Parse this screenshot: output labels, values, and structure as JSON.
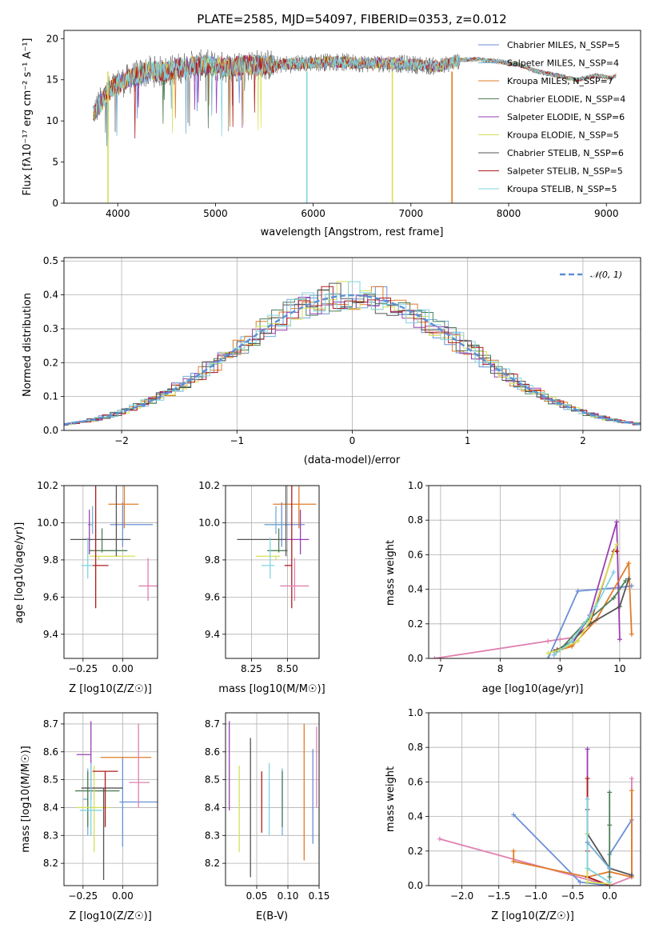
{
  "colors": {
    "c0": "#6a8fd6",
    "c1": "#74afd6",
    "c2": "#e07b28",
    "c3": "#4f7f58",
    "c4": "#9a3fb3",
    "c5": "#d6e05a",
    "c6": "#555555",
    "c7": "#b01c1c",
    "c8": "#7fd4e0",
    "c9": "#e080b0"
  },
  "chart_data": [
    {
      "id": "spectrum",
      "type": "line",
      "title": "PLATE=2585, MJD=54097, FIBERID=0353, z=0.012",
      "xlabel": "wavelength [Angstrom, rest frame]",
      "ylabel": "Flux [fλ10⁻¹⁷ erg cm⁻² s⁻¹ A⁻¹]",
      "xlim": [
        3450,
        9350
      ],
      "ylim": [
        0,
        21
      ],
      "xticks": [
        4000,
        5000,
        6000,
        7000,
        8000,
        9000
      ],
      "yticks": [
        0,
        5,
        10,
        15,
        20
      ],
      "legend_position": "upper right",
      "series": [
        {
          "name": "Chabrier MILES, N_SSP=5",
          "color": "c0"
        },
        {
          "name": "Salpeter MILES, N_SSP=4",
          "color": "c1"
        },
        {
          "name": "Kroupa MILES, N_SSP=7",
          "color": "c2"
        },
        {
          "name": "Chabrier ELODIE, N_SSP=4",
          "color": "c3"
        },
        {
          "name": "Salpeter ELODIE, N_SSP=6",
          "color": "c4"
        },
        {
          "name": "Kroupa ELODIE, N_SSP=5",
          "color": "c5"
        },
        {
          "name": "Chabrier STELIB, N_SSP=6",
          "color": "c6"
        },
        {
          "name": "Salpeter STELIB, N_SSP=5",
          "color": "c7"
        },
        {
          "name": "Kroupa STELIB, N_SSP=5",
          "color": "c8"
        }
      ],
      "continuum": {
        "x": [
          3750,
          3900,
          4000,
          4100,
          4300,
          4500,
          4700,
          4900,
          5100,
          5300,
          5600,
          5900,
          6200,
          6500,
          6800,
          7100,
          7300,
          7500,
          7700,
          7900,
          8100,
          8300,
          8500,
          8700,
          8900,
          9050,
          9100
        ],
        "y": [
          11,
          13.5,
          14.5,
          15,
          16,
          16,
          16.6,
          16.8,
          16.5,
          16.8,
          16.8,
          17,
          17.2,
          17,
          17,
          16.8,
          16.6,
          17.4,
          17.5,
          17.2,
          16.8,
          16,
          15.5,
          15,
          15.5,
          15.2,
          15.5
        ]
      }
    },
    {
      "id": "residuals",
      "type": "line",
      "xlabel": "(data-model)/error",
      "ylabel": "Normed distribution",
      "xlim": [
        -2.5,
        2.5
      ],
      "ylim": [
        0,
        0.51
      ],
      "xticks": [
        -2,
        -1,
        0,
        1,
        2
      ],
      "yticks": [
        0.0,
        0.1,
        0.2,
        0.3,
        0.4,
        0.5
      ],
      "legend_position": "upper right",
      "reference_curve": {
        "name": "𝒩(0, 1)",
        "color": "#5b8fd6"
      }
    },
    {
      "id": "age-vs-Z",
      "type": "scatter",
      "xlabel": "Z [log10(Z/Z☉)]",
      "ylabel": "age  [log10(age/yr)]",
      "xlim": [
        -0.37,
        0.22
      ],
      "ylim": [
        9.27,
        10.2
      ],
      "xticks": [
        -0.25,
        0.0
      ],
      "yticks": [
        9.4,
        9.6,
        9.8,
        10.0,
        10.2
      ],
      "points": [
        {
          "color": "c0",
          "x": 0.0,
          "y": 9.99,
          "xe": [
            0.08,
            0.19
          ],
          "ye": [
            0.12,
            0.12
          ]
        },
        {
          "color": "c1",
          "x": -0.19,
          "y": 9.99,
          "xe": [
            0.03,
            0.0
          ],
          "ye": [
            0.05,
            0.1
          ]
        },
        {
          "color": "c2",
          "x": 0.01,
          "y": 10.1,
          "xe": [
            0.1,
            0.09
          ],
          "ye": [
            0.13,
            0.36
          ]
        },
        {
          "color": "c3",
          "x": -0.13,
          "y": 9.85,
          "xe": [
            0.08,
            0.16
          ],
          "ye": [
            0.01,
            0.12
          ]
        },
        {
          "color": "c4",
          "x": -0.21,
          "y": 9.91,
          "xe": [
            0.04,
            0.0
          ],
          "ye": [
            0.08,
            0.16
          ]
        },
        {
          "color": "c5",
          "x": -0.15,
          "y": 9.82,
          "xe": [
            0.06,
            0.23
          ],
          "ye": [
            0.02,
            0.0
          ]
        },
        {
          "color": "c6",
          "x": -0.04,
          "y": 9.91,
          "xe": [
            0.29,
            0.09
          ],
          "ye": [
            0.09,
            0.6
          ]
        },
        {
          "color": "c7",
          "x": -0.17,
          "y": 9.77,
          "xe": [
            0.02,
            0.08
          ],
          "ye": [
            0.23,
            0.46
          ]
        },
        {
          "color": "c8",
          "x": -0.22,
          "y": 9.77,
          "xe": [
            0.04,
            0.03
          ],
          "ye": [
            0.07,
            0.15
          ]
        },
        {
          "color": "c9",
          "x": 0.16,
          "y": 9.66,
          "xe": [
            0.06,
            0.08
          ],
          "ye": [
            0.08,
            0.15
          ]
        }
      ]
    },
    {
      "id": "age-vs-mass",
      "type": "scatter",
      "xlabel": "mass [log10(M/M☉)]",
      "xlim": [
        8.07,
        8.72
      ],
      "ylim": [
        9.27,
        10.2
      ],
      "xticks": [
        8.25,
        8.5
      ],
      "yticks": [
        9.4,
        9.6,
        9.8,
        10.0,
        10.2
      ],
      "points": [
        {
          "color": "c0",
          "x": 8.46,
          "y": 9.99,
          "xe": [
            0.12,
            0.16
          ],
          "ye": [
            0.12,
            0.12
          ]
        },
        {
          "color": "c1",
          "x": 8.42,
          "y": 9.99,
          "xe": [
            0.08,
            0.05
          ],
          "ye": [
            0.05,
            0.1
          ]
        },
        {
          "color": "c2",
          "x": 8.58,
          "y": 10.1,
          "xe": [
            0.18,
            0.12
          ],
          "ye": [
            0.13,
            0.36
          ]
        },
        {
          "color": "c3",
          "x": 8.44,
          "y": 9.85,
          "xe": [
            0.08,
            0.06
          ],
          "ye": [
            0.01,
            0.12
          ]
        },
        {
          "color": "c4",
          "x": 8.59,
          "y": 9.91,
          "xe": [
            0.12,
            0.06
          ],
          "ye": [
            0.08,
            0.16
          ]
        },
        {
          "color": "c5",
          "x": 8.42,
          "y": 9.82,
          "xe": [
            0.14,
            0.03
          ],
          "ye": [
            0.02,
            0.0
          ]
        },
        {
          "color": "c6",
          "x": 8.49,
          "y": 9.91,
          "xe": [
            0.34,
            0.0
          ],
          "ye": [
            0.09,
            0.6
          ]
        },
        {
          "color": "c7",
          "x": 8.53,
          "y": 9.77,
          "xe": [
            0.05,
            0.0
          ],
          "ye": [
            0.23,
            0.46
          ]
        },
        {
          "color": "c8",
          "x": 8.38,
          "y": 9.77,
          "xe": [
            0.06,
            0.03
          ],
          "ye": [
            0.07,
            0.15
          ]
        },
        {
          "color": "c9",
          "x": 8.55,
          "y": 9.66,
          "xe": [
            0.1,
            0.1
          ],
          "ye": [
            0.08,
            0.15
          ]
        }
      ]
    },
    {
      "id": "weight-vs-age",
      "type": "line",
      "xlabel": "age  [log10(age/yr)]",
      "ylabel": "mass weight",
      "xlim": [
        6.8,
        10.35
      ],
      "ylim": [
        0,
        1
      ],
      "xticks": [
        7,
        8,
        9,
        10
      ],
      "yticks": [
        0.0,
        0.2,
        0.4,
        0.6,
        0.8,
        1.0
      ],
      "series": [
        {
          "color": "c9",
          "x": [
            6.9,
            8.8,
            9.0,
            9.2
          ],
          "y": [
            0.0,
            0.1,
            0.11,
            0.12
          ]
        },
        {
          "color": "c0",
          "x": [
            8.8,
            9.3,
            10.0,
            10.2
          ],
          "y": [
            0.0,
            0.39,
            0.41,
            0.42
          ]
        },
        {
          "color": "c4",
          "x": [
            8.9,
            9.0,
            9.2,
            9.5,
            9.95,
            10.0
          ],
          "y": [
            0.02,
            0.05,
            0.08,
            0.25,
            0.79,
            0.11
          ]
        },
        {
          "color": "c7",
          "x": [
            8.95,
            9.1,
            9.5,
            9.9,
            9.95
          ],
          "y": [
            0.05,
            0.07,
            0.2,
            0.62,
            0.62
          ]
        },
        {
          "color": "c2",
          "x": [
            8.9,
            9.2,
            9.6,
            10.15,
            10.2
          ],
          "y": [
            0.04,
            0.07,
            0.22,
            0.55,
            0.14
          ]
        },
        {
          "color": "c6",
          "x": [
            8.9,
            9.2,
            9.5,
            10.0,
            10.15
          ],
          "y": [
            0.04,
            0.1,
            0.2,
            0.3,
            0.46
          ]
        },
        {
          "color": "c3",
          "x": [
            9.0,
            9.4,
            9.9,
            10.1
          ],
          "y": [
            0.05,
            0.2,
            0.35,
            0.45
          ]
        },
        {
          "color": "c5",
          "x": [
            8.8,
            9.0,
            9.3,
            9.5,
            9.95
          ],
          "y": [
            0.03,
            0.05,
            0.1,
            0.22,
            0.66
          ]
        },
        {
          "color": "c8",
          "x": [
            8.9,
            9.2,
            9.6,
            9.9
          ],
          "y": [
            0.02,
            0.1,
            0.3,
            0.5
          ]
        }
      ]
    },
    {
      "id": "mass-vs-Z",
      "type": "scatter",
      "xlabel": "Z [log10(Z/Z☉)]",
      "ylabel": "mass [log10(M/M☉)]",
      "xlim": [
        -0.37,
        0.22
      ],
      "ylim": [
        8.12,
        8.74
      ],
      "xticks": [
        -0.25,
        0.0
      ],
      "yticks": [
        8.2,
        8.3,
        8.4,
        8.5,
        8.6,
        8.7
      ],
      "points": [
        {
          "color": "c0",
          "x": 0.0,
          "y": 8.42,
          "xe": [
            0.02,
            0.22
          ],
          "ye": [
            0.16,
            0.16
          ]
        },
        {
          "color": "c1",
          "x": -0.22,
          "y": 8.43,
          "xe": [
            0.03,
            0.0
          ],
          "ye": [
            0.13,
            0.11
          ]
        },
        {
          "color": "c2",
          "x": 0.01,
          "y": 8.58,
          "xe": [
            0.15,
            0.17
          ],
          "ye": [
            0.0,
            0.0
          ]
        },
        {
          "color": "c3",
          "x": -0.22,
          "y": 8.46,
          "xe": [
            0.08,
            0.2
          ],
          "ye": [
            0.13,
            0.07
          ]
        },
        {
          "color": "c4",
          "x": -0.2,
          "y": 8.59,
          "xe": [
            0.09,
            0.0
          ],
          "ye": [
            0.16,
            0.12
          ]
        },
        {
          "color": "c5",
          "x": -0.18,
          "y": 8.4,
          "xe": [
            0.11,
            0.1
          ],
          "ye": [
            0.16,
            0.15
          ]
        },
        {
          "color": "c6",
          "x": -0.12,
          "y": 8.47,
          "xe": [
            0.14,
            0.12
          ],
          "ye": [
            0.33,
            0.0
          ]
        },
        {
          "color": "c7",
          "x": -0.11,
          "y": 8.53,
          "xe": [
            0.08,
            0.08
          ],
          "ye": [
            0.2,
            0.0
          ]
        },
        {
          "color": "c8",
          "x": -0.2,
          "y": 8.39,
          "xe": [
            0.07,
            0.07
          ],
          "ye": [
            0.09,
            0.17
          ]
        },
        {
          "color": "c9",
          "x": 0.1,
          "y": 8.49,
          "xe": [
            0.06,
            0.07
          ],
          "ye": [
            0.09,
            0.21
          ]
        }
      ]
    },
    {
      "id": "mass-vs-EBV",
      "type": "scatter",
      "xlabel": "E(B-V)",
      "xlim": [
        0.0,
        0.15
      ],
      "ylim": [
        8.12,
        8.74
      ],
      "xticks": [
        0.05,
        0.1,
        0.15
      ],
      "yticks": [
        8.2,
        8.3,
        8.4,
        8.5,
        8.6,
        8.7
      ],
      "points": [
        {
          "color": "c0",
          "x": 0.14,
          "y": 8.43,
          "ye": [
            0.16,
            0.18
          ]
        },
        {
          "color": "c1",
          "x": 0.091,
          "y": 8.43,
          "ye": [
            0.13,
            0.11
          ]
        },
        {
          "color": "c2",
          "x": 0.126,
          "y": 8.58,
          "ye": [
            0.37,
            0.12
          ]
        },
        {
          "color": "c3",
          "x": 0.091,
          "y": 8.46,
          "ye": [
            0.13,
            0.07
          ]
        },
        {
          "color": "c4",
          "x": 0.006,
          "y": 8.59,
          "ye": [
            0.2,
            0.12
          ]
        },
        {
          "color": "c5",
          "x": 0.022,
          "y": 8.4,
          "ye": [
            0.16,
            0.15
          ]
        },
        {
          "color": "c6",
          "x": 0.04,
          "y": 8.47,
          "ye": [
            0.32,
            0.18
          ]
        },
        {
          "color": "c7",
          "x": 0.058,
          "y": 8.53,
          "ye": [
            0.22,
            0.0
          ]
        },
        {
          "color": "c8",
          "x": 0.07,
          "y": 8.39,
          "ye": [
            0.09,
            0.17
          ]
        },
        {
          "color": "c9",
          "x": 0.146,
          "y": 8.49,
          "ye": [
            0.09,
            0.2
          ]
        }
      ]
    },
    {
      "id": "weight-vs-Z",
      "type": "line",
      "xlabel": "Z [log10(Z/Z☉)]",
      "ylabel": "mass weight",
      "xlim": [
        -2.45,
        0.42
      ],
      "ylim": [
        0,
        1
      ],
      "xticks": [
        -2.0,
        -1.5,
        -1.0,
        -0.5,
        0.0
      ],
      "yticks": [
        0.0,
        0.2,
        0.4,
        0.6,
        0.8,
        1.0
      ],
      "series": [
        {
          "color": "c9",
          "x": [
            -2.3,
            0.0,
            0.3,
            0.3
          ],
          "y": [
            0.27,
            0.0,
            0.05,
            0.62
          ]
        },
        {
          "color": "c0",
          "x": [
            -1.3,
            -0.4,
            0.0,
            0.0,
            0.3
          ],
          "y": [
            0.41,
            0.02,
            0.0,
            0.18,
            0.38
          ]
        },
        {
          "color": "c2",
          "x": [
            -1.3,
            -1.3,
            -0.3,
            0.0,
            0.3,
            0.3
          ],
          "y": [
            0.2,
            0.14,
            0.05,
            0.08,
            0.05,
            0.55
          ]
        },
        {
          "color": "c4",
          "x": [
            -0.3,
            -0.3,
            -0.3,
            0.0
          ],
          "y": [
            0.79,
            0.25,
            0.05,
            0.0
          ]
        },
        {
          "color": "c7",
          "x": [
            -0.3,
            -0.3,
            -0.3,
            0.0
          ],
          "y": [
            0.62,
            0.2,
            0.05,
            0.0
          ]
        },
        {
          "color": "c3",
          "x": [
            0.0,
            0.0,
            0.0
          ],
          "y": [
            0.54,
            0.35,
            0.05
          ]
        },
        {
          "color": "c6",
          "x": [
            -0.3,
            -0.3,
            0.0,
            0.3
          ],
          "y": [
            0.44,
            0.3,
            0.1,
            0.06
          ]
        },
        {
          "color": "c5",
          "x": [
            -0.3,
            -0.3,
            0.0
          ],
          "y": [
            0.3,
            0.02,
            0.01
          ]
        },
        {
          "color": "c8",
          "x": [
            -0.3,
            -0.3,
            0.0
          ],
          "y": [
            0.5,
            0.1,
            0.02
          ]
        },
        {
          "color": "c1",
          "x": [
            -0.3,
            0.0
          ],
          "y": [
            0.25,
            0.1
          ]
        }
      ]
    }
  ]
}
